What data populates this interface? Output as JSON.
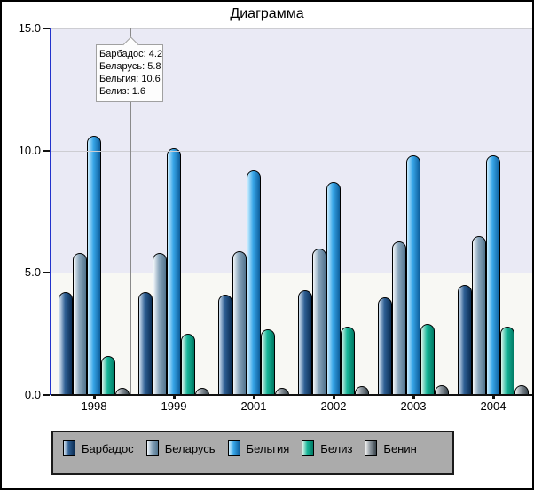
{
  "window": {
    "title": "Диаграмма"
  },
  "chart_data": {
    "type": "bar",
    "title": "Диаграмма",
    "categories": [
      "1998",
      "1999",
      "2001",
      "2002",
      "2003",
      "2004"
    ],
    "series": [
      {
        "name": "Барбадос",
        "color_light": "#d3e2f1",
        "color_mid": "#2e5f94",
        "color_dark": "#0a2c52",
        "values": [
          4.2,
          4.2,
          4.1,
          4.3,
          4.0,
          4.5
        ]
      },
      {
        "name": "Беларусь",
        "color_light": "#f4f8fb",
        "color_mid": "#8aa6bc",
        "color_dark": "#51748e",
        "values": [
          5.8,
          5.8,
          5.9,
          6.0,
          6.3,
          6.5
        ]
      },
      {
        "name": "Бельгия",
        "color_light": "#cceeff",
        "color_mid": "#38a6e8",
        "color_dark": "#0d5f9e",
        "values": [
          10.6,
          10.1,
          9.2,
          8.7,
          9.8,
          9.8
        ]
      },
      {
        "name": "Белиз",
        "color_light": "#dff5ec",
        "color_mid": "#17b598",
        "color_dark": "#007a64",
        "values": [
          1.6,
          2.5,
          2.7,
          2.8,
          2.9,
          2.8
        ]
      },
      {
        "name": "Бенин",
        "color_light": "#f2f2f2",
        "color_mid": "#8a949c",
        "color_dark": "#39444c",
        "values": [
          0.3,
          0.3,
          0.3,
          0.35,
          0.4,
          0.4
        ]
      }
    ],
    "ylim": [
      0,
      15
    ],
    "ytick_values": [
      15,
      10,
      5,
      0
    ],
    "ytick_labels": [
      "15.0",
      "10.0",
      "5.0",
      "0.0"
    ],
    "grid": true,
    "legend_position": "bottom"
  },
  "tooltip": {
    "lines": [
      "Барбадос: 4.2",
      "Беларусь: 5.8",
      "Бельгия: 10.6",
      "Белиз: 1.6"
    ]
  },
  "colors": {
    "plot_bg_top": "#eaeaf5",
    "plot_bg_bottom": "#f8f8f4",
    "gridline": "#cdcdd2",
    "y_axis": "#2233cc",
    "x_axis": "#111111",
    "marker_line": "#8a8a8a",
    "tooltip_border": "#a0a0a0",
    "legend_bg": "#ababab"
  }
}
